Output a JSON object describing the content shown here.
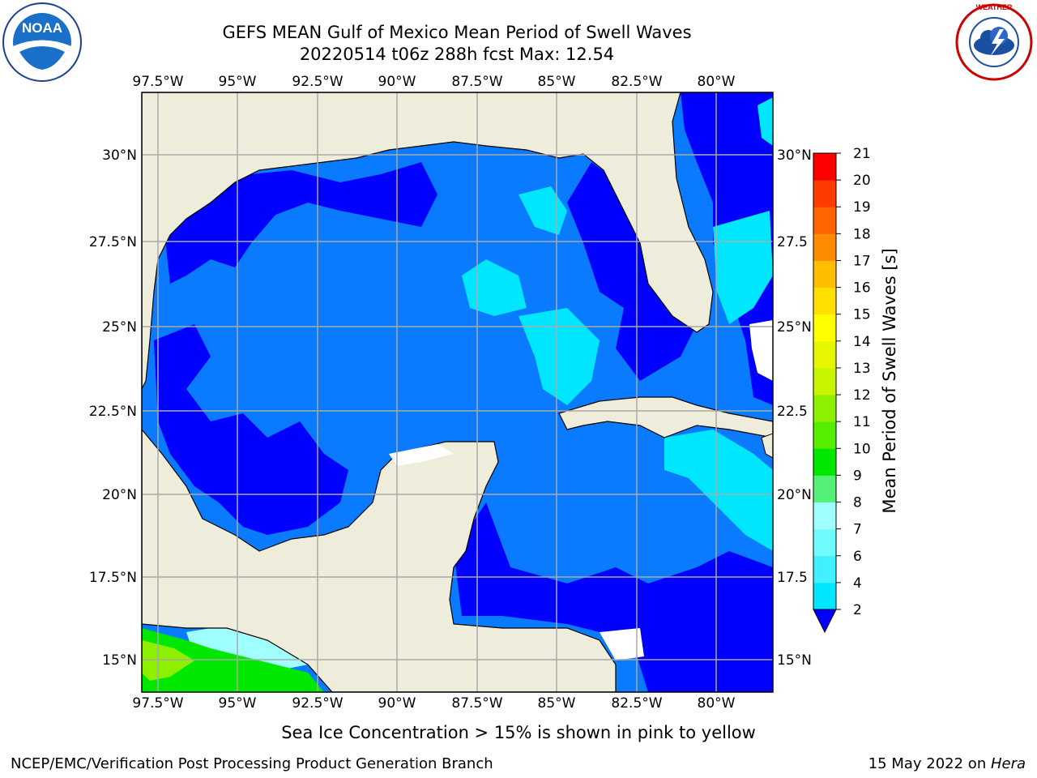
{
  "title": {
    "line1": "GEFS MEAN Gulf of Mexico Mean Period of Swell Waves",
    "line2": "20220514 t06z 288h fcst   Max: 12.54"
  },
  "logos": {
    "left": "noaa-logo",
    "left_text": "NOAA",
    "left_ring_text": "NATIONAL OCEANIC AND ATMOSPHERIC ADMINISTRATION · U.S. DEPARTMENT OF COMMERCE",
    "right": "nws-logo",
    "right_ring_text": "NATIONAL WEATHER SERVICE"
  },
  "map": {
    "lon_ticks": [
      "97.5°W",
      "95°W",
      "92.5°W",
      "90°W",
      "87.5°W",
      "85°W",
      "82.5°W",
      "80°W"
    ],
    "lat_ticks_left": [
      "30°N",
      "27.5°N",
      "25°N",
      "22.5°N",
      "20°N",
      "17.5°N",
      "15°N"
    ],
    "lat_ticks_right": [
      "30°N",
      "27.5",
      "25°N",
      "22.5",
      "20°N",
      "17.5",
      "15°N"
    ],
    "colors": {
      "land": "#eeecdb",
      "deep_blue": "#0000ff",
      "mid_blue": "#0a7bff",
      "cyan": "#00e6ff",
      "light_cyan": "#a0ffff",
      "green": "#00e800",
      "grid": "#aaaaaa"
    }
  },
  "colorbar": {
    "label": "Mean Period of Swell Waves [s]",
    "ticks": [
      "2",
      "4",
      "6",
      "7",
      "8",
      "9",
      "10",
      "11",
      "12",
      "13",
      "14",
      "15",
      "16",
      "17",
      "18",
      "19",
      "20",
      "21"
    ],
    "colors": [
      "#0a7bff",
      "#00e6ff",
      "#40f0ff",
      "#70fbff",
      "#a0ffff",
      "#55f078",
      "#00e800",
      "#55ee00",
      "#8cf000",
      "#c8f500",
      "#e6f500",
      "#ffff00",
      "#ffe000",
      "#ffbf00",
      "#ff8c00",
      "#ff6400",
      "#ff3c00",
      "#ff0000"
    ],
    "extend_color": "#0000ff"
  },
  "ice_note": "Sea Ice Concentration > 15% is shown in pink to yellow",
  "footer": {
    "left": "NCEP/EMC/Verification Post Processing Product Generation Branch",
    "right_prefix": "15 May 2022 on ",
    "right_host": "Hera"
  }
}
